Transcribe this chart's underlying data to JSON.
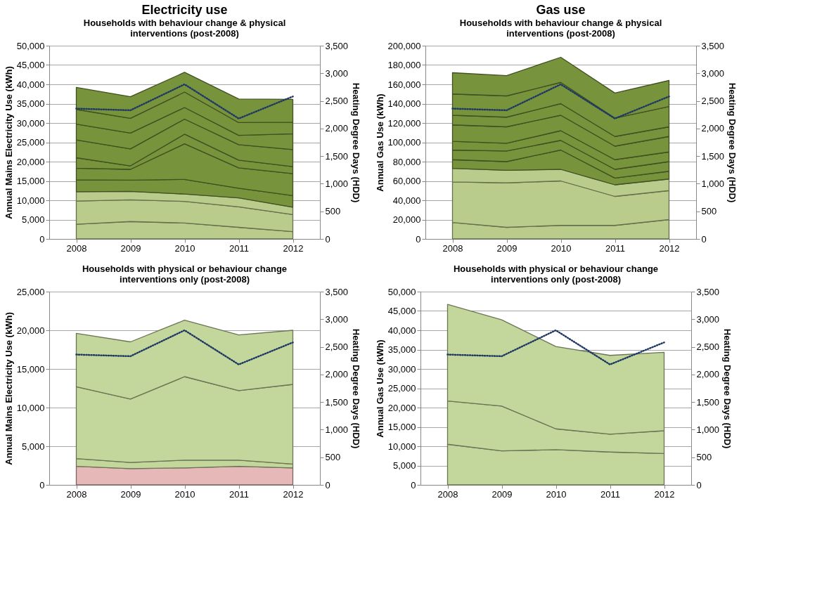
{
  "chart_data": [
    {
      "type": "area",
      "stacked": true,
      "title": "Electricity use",
      "subtitle": "Households with behaviour change & physical interventions (post-2008)",
      "ylabel": "Annual Mains Electricity Use (kWh)",
      "y2label": "Heating Degree Days (HDD)",
      "categories": [
        "2008",
        "2009",
        "2010",
        "2011",
        "2012"
      ],
      "grid": "y",
      "legend": false,
      "ylim": [
        0,
        50000
      ],
      "yticks": [
        0,
        {
          "value": 5000,
          "label": "5,000"
        },
        {
          "value": 10000,
          "label": "10,000"
        },
        {
          "value": 15000,
          "label": "15,000"
        },
        {
          "value": 20000,
          "label": "20,000"
        },
        {
          "value": 25000,
          "label": "25,000"
        },
        {
          "value": 30000,
          "label": "30,000"
        },
        {
          "value": 35000,
          "label": "35,000"
        },
        {
          "value": 40000,
          "label": "40,000"
        },
        {
          "value": 45000,
          "label": "45,000"
        },
        {
          "value": 50000,
          "label": "50,000"
        }
      ],
      "y2lim": [
        0,
        3500
      ],
      "y2ticks": [
        0,
        500,
        {
          "value": 1000,
          "label": "1,000"
        },
        {
          "value": 1500,
          "label": "1,500"
        },
        {
          "value": 2000,
          "label": "2,000"
        },
        {
          "value": 2500,
          "label": "2,500"
        },
        {
          "value": 3000,
          "label": "3,000"
        },
        {
          "value": 3500,
          "label": "3,500"
        }
      ],
      "series": [
        {
          "color": "#b9cc8c",
          "values": [
            3800,
            4500,
            4100,
            3000,
            1900
          ]
        },
        {
          "color": "#b9cc8c",
          "values": [
            6000,
            5600,
            5600,
            5300,
            4400
          ]
        },
        {
          "color": "#b9cc8c",
          "values": [
            2400,
            2200,
            1900,
            2300,
            1900
          ]
        },
        {
          "color": "#77933c",
          "values": [
            3100,
            2900,
            3800,
            2500,
            3000
          ]
        },
        {
          "color": "#77933c",
          "values": [
            3000,
            2800,
            9200,
            5300,
            5700
          ]
        },
        {
          "color": "#77933c",
          "values": [
            2700,
            900,
            2500,
            2000,
            1800
          ]
        },
        {
          "color": "#77933c",
          "values": [
            4600,
            4400,
            3900,
            4000,
            4400
          ]
        },
        {
          "color": "#77933c",
          "values": [
            4100,
            4100,
            3000,
            2400,
            4100
          ]
        },
        {
          "color": "#77933c",
          "values": [
            3800,
            3800,
            4000,
            3300,
            3000
          ]
        },
        {
          "color": "#77933c",
          "values": [
            5700,
            5600,
            5100,
            6100,
            5900
          ]
        },
        {
          "type": "line",
          "axis": "y2",
          "line_style": "dotted",
          "color": "#1f3864",
          "values": [
            2360,
            2330,
            2800,
            2180,
            2580
          ]
        }
      ]
    },
    {
      "type": "area",
      "stacked": true,
      "title": "Gas use",
      "subtitle": "Households with behaviour change & physical interventions (post-2008)",
      "ylabel": "Annual Gas Use (kWh)",
      "y2label": "Heating Degree Days (HDD)",
      "categories": [
        "2008",
        "2009",
        "2010",
        "2011",
        "2012"
      ],
      "grid": "y",
      "legend": false,
      "ylim": [
        0,
        200000
      ],
      "yticks": [
        0,
        {
          "value": 20000,
          "label": "20,000"
        },
        {
          "value": 40000,
          "label": "40,000"
        },
        {
          "value": 60000,
          "label": "60,000"
        },
        {
          "value": 80000,
          "label": "80,000"
        },
        {
          "value": 100000,
          "label": "100,000"
        },
        {
          "value": 120000,
          "label": "120,000"
        },
        {
          "value": 140000,
          "label": "140,000"
        },
        {
          "value": 160000,
          "label": "160,000"
        },
        {
          "value": 180000,
          "label": "180,000"
        },
        {
          "value": 200000,
          "label": "200,000"
        }
      ],
      "y2lim": [
        0,
        3500
      ],
      "y2ticks": [
        0,
        500,
        {
          "value": 1000,
          "label": "1,000"
        },
        {
          "value": 1500,
          "label": "1,500"
        },
        {
          "value": 2000,
          "label": "2,000"
        },
        {
          "value": 2500,
          "label": "2,500"
        },
        {
          "value": 3000,
          "label": "3,000"
        },
        {
          "value": 3500,
          "label": "3,500"
        }
      ],
      "series": [
        {
          "color": "#b9cc8c",
          "values": [
            17000,
            12000,
            14000,
            14000,
            20000
          ]
        },
        {
          "color": "#b9cc8c",
          "values": [
            42000,
            46000,
            46000,
            30000,
            30000
          ]
        },
        {
          "color": "#b9cc8c",
          "values": [
            14000,
            13000,
            12000,
            12000,
            12000
          ]
        },
        {
          "color": "#77933c",
          "values": [
            9000,
            9000,
            20000,
            7000,
            8000
          ]
        },
        {
          "color": "#77933c",
          "values": [
            10000,
            11000,
            10000,
            9000,
            10000
          ]
        },
        {
          "color": "#77933c",
          "values": [
            9000,
            8000,
            10000,
            10000,
            10000
          ]
        },
        {
          "color": "#77933c",
          "values": [
            17000,
            17000,
            16000,
            14000,
            16000
          ]
        },
        {
          "color": "#77933c",
          "values": [
            10000,
            10000,
            12000,
            10000,
            10000
          ]
        },
        {
          "color": "#77933c",
          "values": [
            22000,
            22000,
            22000,
            19000,
            21000
          ]
        },
        {
          "color": "#77933c",
          "values": [
            22000,
            21000,
            26000,
            26000,
            27000
          ]
        },
        {
          "type": "line",
          "axis": "y2",
          "line_style": "dotted",
          "color": "#1f3864",
          "values": [
            2360,
            2330,
            2800,
            2180,
            2580
          ]
        }
      ]
    },
    {
      "type": "area",
      "stacked": true,
      "title": "Households with physical or behaviour change interventions only (post-2008)",
      "ylabel": "Annual Mains Electricity Use (kWh)",
      "y2label": "Heating Degree Days (HDD)",
      "categories": [
        "2008",
        "2009",
        "2010",
        "2011",
        "2012"
      ],
      "grid": "y",
      "legend": false,
      "ylim": [
        0,
        25000
      ],
      "yticks": [
        0,
        {
          "value": 5000,
          "label": "5,000"
        },
        {
          "value": 10000,
          "label": "10,000"
        },
        {
          "value": 15000,
          "label": "15,000"
        },
        {
          "value": 20000,
          "label": "20,000"
        },
        {
          "value": 25000,
          "label": "25,000"
        }
      ],
      "y2lim": [
        0,
        3500
      ],
      "y2ticks": [
        0,
        500,
        {
          "value": 1000,
          "label": "1,000"
        },
        {
          "value": 1500,
          "label": "1,500"
        },
        {
          "value": 2000,
          "label": "2,000"
        },
        {
          "value": 2500,
          "label": "2,500"
        },
        {
          "value": 3000,
          "label": "3,000"
        },
        {
          "value": 3500,
          "label": "3,500"
        }
      ],
      "series": [
        {
          "color": "#e6b9b8",
          "values": [
            2400,
            2100,
            2200,
            2400,
            2200
          ]
        },
        {
          "color": "#c3d69b",
          "values": [
            1000,
            800,
            1000,
            800,
            500
          ]
        },
        {
          "color": "#c3d69b",
          "values": [
            9300,
            8200,
            10800,
            9000,
            10300
          ]
        },
        {
          "color": "#c3d69b",
          "values": [
            6900,
            7400,
            7300,
            7200,
            7000
          ]
        },
        {
          "type": "line",
          "axis": "y2",
          "line_style": "dotted",
          "color": "#1f3864",
          "values": [
            2360,
            2330,
            2800,
            2180,
            2580
          ]
        }
      ]
    },
    {
      "type": "area",
      "stacked": true,
      "title": "Households with physical or behaviour change interventions only (post-2008)",
      "ylabel": "Annual Gas Use (kWh)",
      "y2label": "Heating Degree Days (HDD)",
      "categories": [
        "2008",
        "2009",
        "2010",
        "2011",
        "2012"
      ],
      "grid": "y",
      "legend": false,
      "ylim": [
        0,
        50000
      ],
      "yticks": [
        0,
        {
          "value": 5000,
          "label": "5,000"
        },
        {
          "value": 10000,
          "label": "10,000"
        },
        {
          "value": 15000,
          "label": "15,000"
        },
        {
          "value": 20000,
          "label": "20,000"
        },
        {
          "value": 25000,
          "label": "25,000"
        },
        {
          "value": 30000,
          "label": "30,000"
        },
        {
          "value": 35000,
          "label": "35,000"
        },
        {
          "value": 40000,
          "label": "40,000"
        },
        {
          "value": 45000,
          "label": "45,000"
        },
        {
          "value": 50000,
          "label": "50,000"
        }
      ],
      "y2lim": [
        0,
        3500
      ],
      "y2ticks": [
        0,
        500,
        {
          "value": 1000,
          "label": "1,000"
        },
        {
          "value": 1500,
          "label": "1,500"
        },
        {
          "value": 2000,
          "label": "2,000"
        },
        {
          "value": 2500,
          "label": "2,500"
        },
        {
          "value": 3000,
          "label": "3,000"
        },
        {
          "value": 3500,
          "label": "3,500"
        }
      ],
      "series": [
        {
          "color": "#c3d69b",
          "values": [
            10500,
            8800,
            9100,
            8500,
            8100
          ]
        },
        {
          "color": "#c3d69b",
          "values": [
            11200,
            11600,
            5400,
            4600,
            5900
          ]
        },
        {
          "color": "#c3d69b",
          "values": [
            25000,
            22300,
            21300,
            20400,
            20300
          ]
        },
        {
          "type": "line",
          "axis": "y2",
          "line_style": "dotted",
          "color": "#1f3864",
          "values": [
            2360,
            2330,
            2800,
            2180,
            2580
          ]
        }
      ]
    }
  ]
}
